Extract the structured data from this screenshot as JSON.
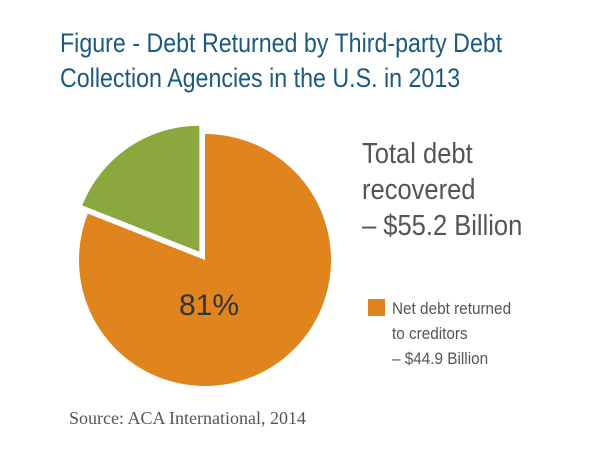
{
  "colors": {
    "title": "#1b5a80",
    "orange": "#e0851e",
    "green": "#8aa83e",
    "text": "#555555"
  },
  "title": {
    "line1": "Figure  - Debt Returned by Third-party Debt",
    "line2": "Collection Agencies in the U.S. in 2013"
  },
  "total": {
    "line1": "Total debt",
    "line2": "recovered",
    "line3": "– $55.2 Billion"
  },
  "legend": {
    "line1": "Net debt returned",
    "line2": "to creditors",
    "line3": "– $44.9 Billion"
  },
  "source": "Source:  ACA International, 2014",
  "chart_data": {
    "type": "pie",
    "title": "Figure  - Debt Returned by Third-party Debt Collection Agencies in the U.S. in 2013",
    "slices": [
      {
        "label": "Net debt returned to creditors – $44.9 Billion",
        "value": 81,
        "value_label": "81%",
        "color": "#e0851e",
        "exploded": false
      },
      {
        "label": "",
        "value": 19,
        "value_label": "",
        "color": "#8aa83e",
        "exploded": true
      }
    ],
    "legend_position": "right"
  }
}
